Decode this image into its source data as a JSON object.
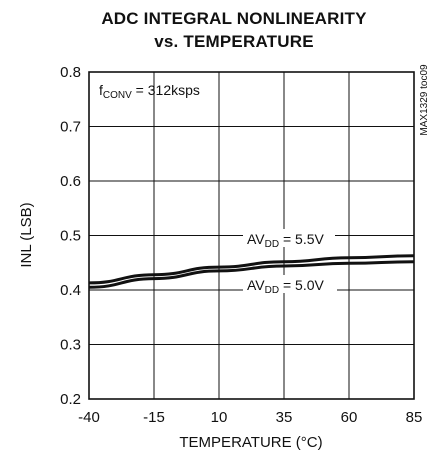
{
  "chart_data": {
    "type": "line",
    "title_line1": "ADC INTEGRAL NONLINEARITY",
    "title_line2": "vs. TEMPERATURE",
    "xlabel": "TEMPERATURE (°C)",
    "ylabel": "INL (LSB)",
    "xlim": [
      -40,
      85
    ],
    "ylim": [
      0.2,
      0.8
    ],
    "xticks": [
      -40,
      -15,
      10,
      35,
      60,
      85
    ],
    "yticks": [
      0.2,
      0.3,
      0.4,
      0.5,
      0.6,
      0.7,
      0.8
    ],
    "xtick_labels": [
      "-40",
      "-15",
      "10",
      "35",
      "60",
      "85"
    ],
    "ytick_labels": [
      "0.2",
      "0.3",
      "0.4",
      "0.5",
      "0.6",
      "0.7",
      "0.8"
    ],
    "grid": true,
    "annotations": {
      "fconv": {
        "main": "f",
        "sub": "CONV",
        "rest": " = 312ksps"
      },
      "watermark": "MAX1329 toc09"
    },
    "series": [
      {
        "name": "AVDD = 5.5V",
        "label_main": "AV",
        "label_sub": "DD",
        "label_rest": " = 5.5V",
        "x": [
          -40,
          -15,
          10,
          35,
          60,
          85
        ],
        "y": [
          0.413,
          0.428,
          0.442,
          0.452,
          0.459,
          0.463
        ]
      },
      {
        "name": "AVDD = 5.0V",
        "label_main": "AV",
        "label_sub": "DD",
        "label_rest": " = 5.0V",
        "x": [
          -40,
          -15,
          10,
          35,
          60,
          85
        ],
        "y": [
          0.405,
          0.421,
          0.435,
          0.444,
          0.449,
          0.452
        ]
      }
    ]
  }
}
